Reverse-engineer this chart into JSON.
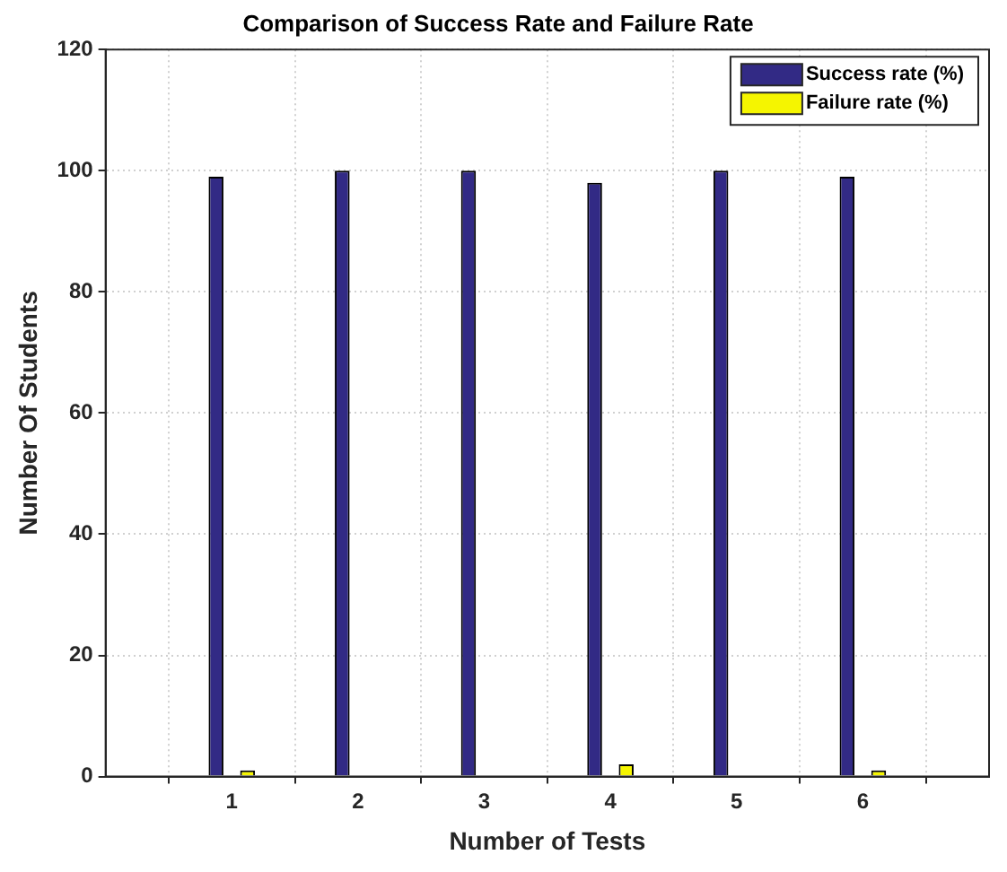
{
  "chart_data": {
    "type": "bar",
    "title": "Comparison of Success Rate and Failure Rate",
    "xlabel": "Number of Tests",
    "ylabel": "Number Of Students",
    "x": [
      1,
      2,
      3,
      4,
      5,
      6
    ],
    "xlim": [
      0,
      7
    ],
    "xticks": [
      1,
      2,
      3,
      4,
      5,
      6
    ],
    "ylim": [
      0,
      120
    ],
    "yticks": [
      0,
      20,
      40,
      60,
      80,
      100,
      120
    ],
    "series": [
      {
        "name": "Success rate (%)",
        "color": "#322a85",
        "values": [
          99,
          100,
          100,
          98,
          100,
          99
        ]
      },
      {
        "name": "Failure rate (%)",
        "color": "#f5f500",
        "values": [
          1,
          0,
          0,
          2,
          0,
          1
        ]
      }
    ],
    "grid": true,
    "legend": "top right"
  }
}
